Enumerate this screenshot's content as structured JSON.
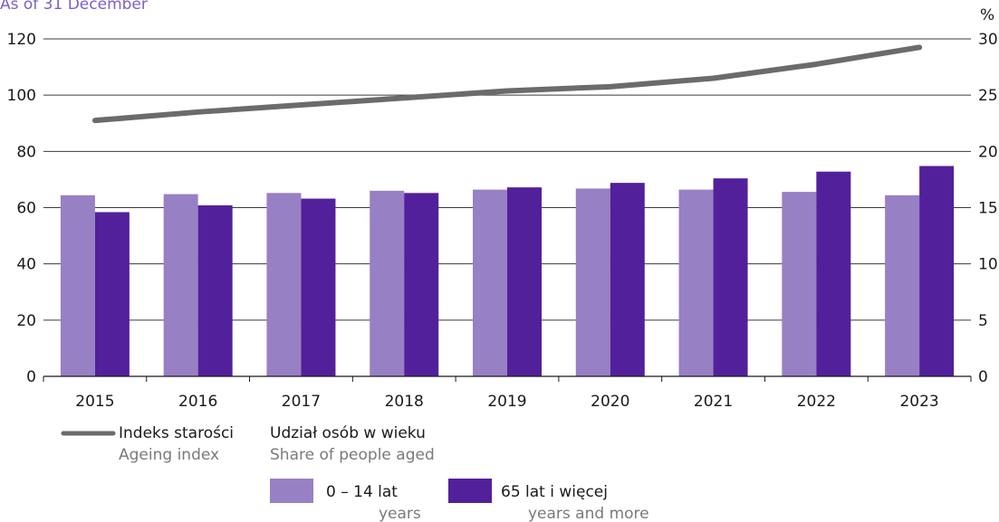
{
  "chart_data": {
    "type": "bar",
    "subtitle": "As of 31 December",
    "categories": [
      "2015",
      "2016",
      "2017",
      "2018",
      "2019",
      "2020",
      "2021",
      "2022",
      "2023"
    ],
    "left_axis": {
      "unit": "",
      "min": 0,
      "max": 120,
      "ticks": [
        "0",
        "20",
        "40",
        "60",
        "80",
        "100",
        "120"
      ]
    },
    "right_axis": {
      "unit": "%",
      "min": 0,
      "max": 30,
      "ticks": [
        "0",
        "5",
        "10",
        "15",
        "20",
        "25",
        "30"
      ]
    },
    "grid": true,
    "series": [
      {
        "name": "0 – 14 lat",
        "name_sub": "years",
        "type": "bar",
        "axis": "right",
        "color": "#9880c4",
        "values": [
          16.1,
          16.2,
          16.3,
          16.5,
          16.6,
          16.7,
          16.6,
          16.4,
          16.1
        ]
      },
      {
        "name": "65 lat i więcej",
        "name_sub": "years and more",
        "type": "bar",
        "axis": "right",
        "color": "#52209b",
        "values": [
          14.6,
          15.2,
          15.8,
          16.3,
          16.8,
          17.2,
          17.6,
          18.2,
          18.7
        ]
      },
      {
        "name": "Indeks starości",
        "name_sub": "Ageing index",
        "type": "line",
        "axis": "left",
        "color": "#6b6b6b",
        "values": [
          91,
          94,
          96.5,
          99,
          101.5,
          103,
          106,
          111,
          117
        ]
      }
    ],
    "legend": {
      "group_title": "Udział osób w wieku",
      "group_subtitle": "Share of people aged",
      "placement": "bottom"
    }
  }
}
